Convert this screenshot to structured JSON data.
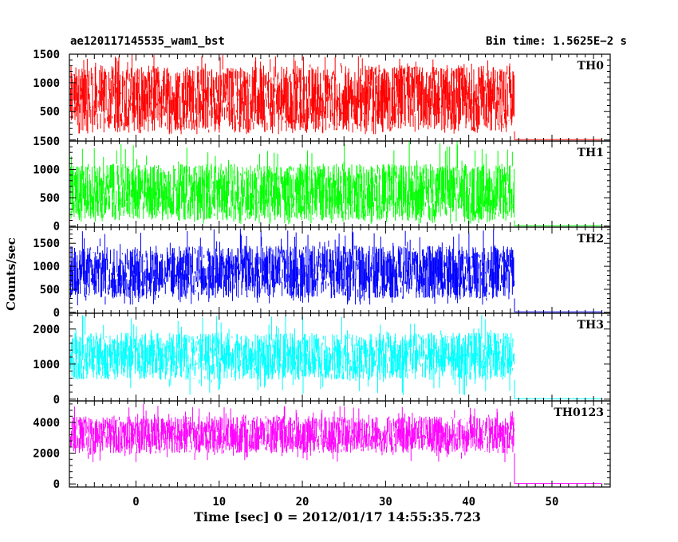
{
  "header": {
    "title": "ae120117145535_wam1_bst",
    "bin_time": "Bin time: 1.5625E−2 s"
  },
  "chart_data": {
    "type": "line",
    "xlabel": "Time [sec] 0 = 2012/01/17 14:55:35.723",
    "ylabel": "Counts/sec",
    "xlim": [
      -8,
      57
    ],
    "x_ticks": [
      0,
      10,
      20,
      30,
      40,
      50
    ],
    "grid": false,
    "panels": [
      {
        "name": "TH0",
        "color": "#ff0000",
        "ylim": [
          -20,
          1500
        ],
        "y_ticks": [
          500,
          1000,
          1500
        ],
        "segments": [
          {
            "x_start": -8,
            "x_end": 45.5,
            "min": 100,
            "max": 1500,
            "typical_low": 150,
            "typical_high": 1300
          },
          {
            "x_start": 45.5,
            "x_end": 56,
            "value": 0
          }
        ]
      },
      {
        "name": "TH1",
        "color": "#00ff00",
        "ylim": [
          -20,
          1500
        ],
        "y_ticks": [
          0,
          500,
          1000,
          1500
        ],
        "segments": [
          {
            "x_start": -8,
            "x_end": 45.5,
            "min": 30,
            "max": 1500,
            "typical_low": 100,
            "typical_high": 1100
          },
          {
            "x_start": 45.5,
            "x_end": 56,
            "value": 0
          }
        ]
      },
      {
        "name": "TH2",
        "color": "#0000ff",
        "ylim": [
          -20,
          1850
        ],
        "y_ticks": [
          0,
          500,
          1000,
          1500
        ],
        "segments": [
          {
            "x_start": -8,
            "x_end": 45.5,
            "min": 150,
            "max": 1850,
            "typical_low": 300,
            "typical_high": 1450
          },
          {
            "x_start": 45.5,
            "x_end": 56,
            "value": 0
          }
        ]
      },
      {
        "name": "TH3",
        "color": "#00ffff",
        "ylim": [
          -50,
          2450
        ],
        "y_ticks": [
          0,
          1000,
          2000
        ],
        "segments": [
          {
            "x_start": -8,
            "x_end": 45.5,
            "min": 100,
            "max": 2450,
            "typical_low": 550,
            "typical_high": 1900
          },
          {
            "x_start": 45.5,
            "x_end": 56,
            "value": 0
          }
        ]
      },
      {
        "name": "TH0123",
        "color": "#ff00ff",
        "ylim": [
          -200,
          5400
        ],
        "y_ticks": [
          0,
          2000,
          4000
        ],
        "segments": [
          {
            "x_start": -8,
            "x_end": 45.5,
            "min": 1400,
            "max": 5200,
            "typical_low": 2000,
            "typical_high": 4400
          },
          {
            "x_start": 45.5,
            "x_end": 56,
            "value": 0
          }
        ]
      }
    ]
  }
}
